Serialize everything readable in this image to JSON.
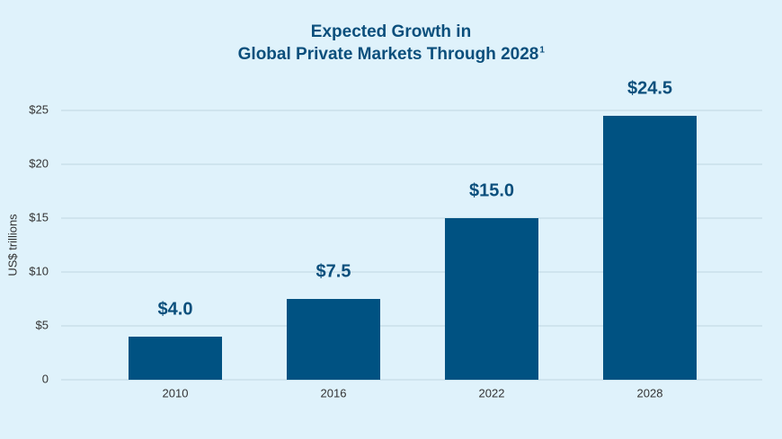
{
  "chart_data": {
    "type": "bar",
    "title": [
      "Expected Growth in",
      "Global Private Markets Through 2028"
    ],
    "title_note": "1",
    "y_label": "US$ trillions",
    "categories": [
      "2010",
      "2016",
      "2022",
      "2028"
    ],
    "values": [
      4.0,
      7.5,
      15.0,
      24.5
    ],
    "value_labels": [
      "$4.0",
      "$7.5",
      "$15.0",
      "$24.5"
    ],
    "color": "#005282",
    "ylim": [
      0,
      25
    ],
    "yticks": [
      0,
      {
        "value": 5,
        "label": "$5"
      },
      {
        "value": 10,
        "label": "$10"
      },
      {
        "value": 15,
        "label": "$15"
      },
      {
        "value": 20,
        "label": "$20"
      },
      {
        "value": 25,
        "label": "$25"
      }
    ],
    "grid": true
  }
}
